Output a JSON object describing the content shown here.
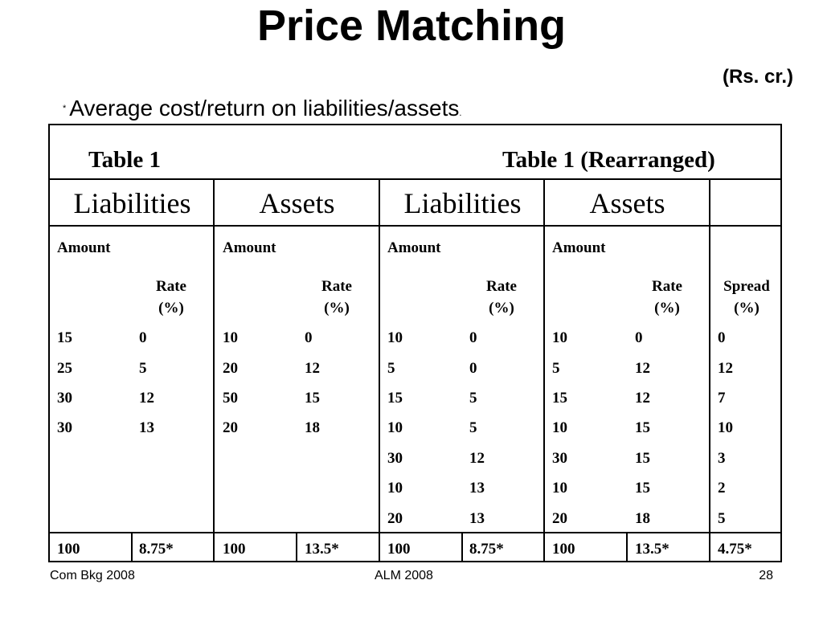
{
  "title": "Price Matching",
  "unit": "(Rs. cr.)",
  "subtitle": {
    "marker": "*",
    "text": "Average cost/return on liabilities/assets",
    "dot": "."
  },
  "captions": {
    "left": "Table 1",
    "right": "Table 1 (Rearranged)"
  },
  "headers": [
    "Liabilities",
    "Assets",
    "Liabilities",
    "Assets"
  ],
  "sub_labels": {
    "amount": "Amount",
    "rate_line1": "Rate",
    "rate_line2": "(%)",
    "spread_line1": "Spread",
    "spread_line2": "(%)"
  },
  "table1_rows": [
    [
      "15",
      "0",
      "10",
      "0"
    ],
    [
      "25",
      "5",
      "20",
      "12"
    ],
    [
      "30",
      "12",
      "50",
      "15"
    ],
    [
      "30",
      "13",
      "20",
      "18"
    ]
  ],
  "table2_rows": [
    [
      "10",
      "0",
      "10",
      "0",
      "0"
    ],
    [
      "5",
      "0",
      "5",
      "12",
      "12"
    ],
    [
      "15",
      "5",
      "15",
      "12",
      "7"
    ],
    [
      "10",
      "5",
      "10",
      "15",
      "10"
    ],
    [
      "30",
      "12",
      "30",
      "15",
      "3"
    ],
    [
      "10",
      "13",
      "10",
      "15",
      "2"
    ],
    [
      "20",
      "13",
      "20",
      "18",
      "5"
    ]
  ],
  "totals": [
    "100",
    "8.75*",
    "100",
    "13.5*",
    "100",
    "8.75*",
    "100",
    "13.5*",
    "4.75*"
  ],
  "footer": {
    "left": "Com Bkg 2008",
    "center": "ALM 2008",
    "right": "28"
  }
}
